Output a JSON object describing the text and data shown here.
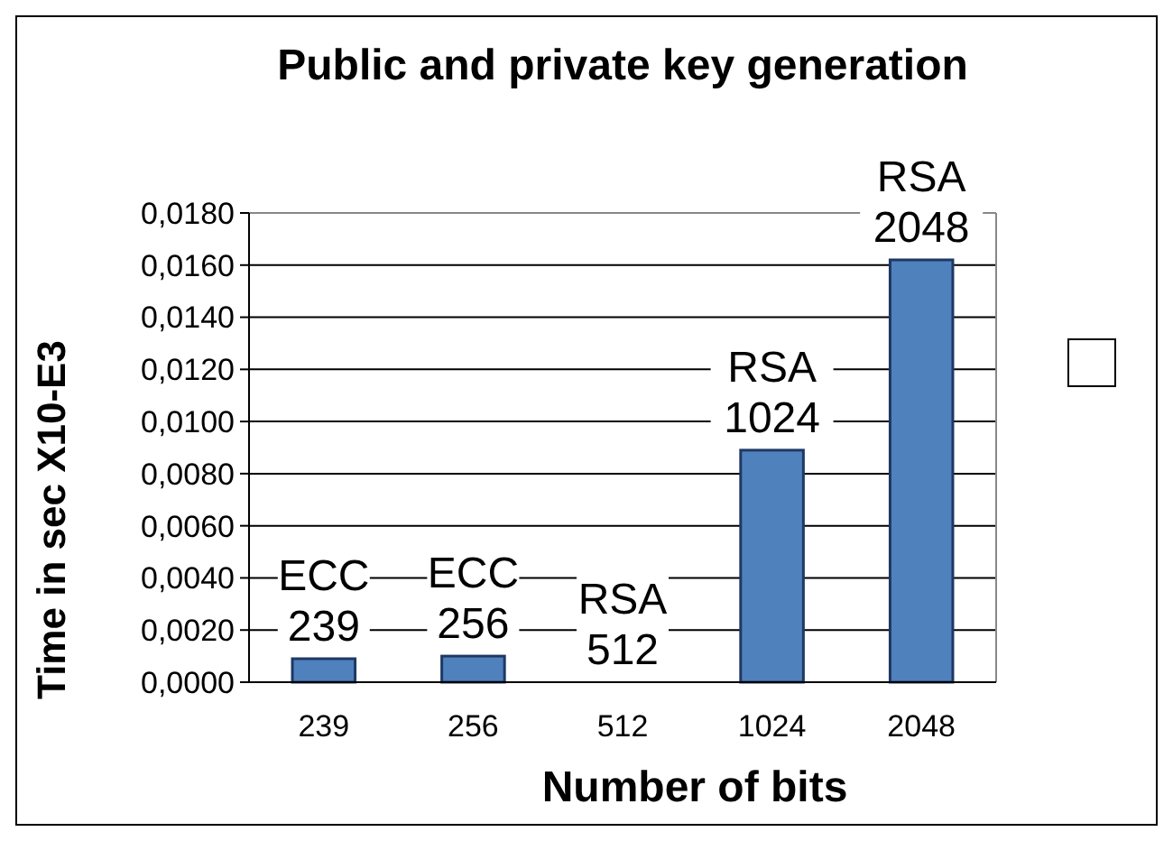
{
  "chart_data": {
    "type": "bar",
    "title": "Public and private key generation",
    "xlabel": "Number of bits",
    "ylabel": "Time in sec X10-E3",
    "categories": [
      "239",
      "256",
      "512",
      "1024",
      "2048"
    ],
    "values": [
      0.0009,
      0.001,
      0,
      0.0089,
      0.0162
    ],
    "color": "#4f81bd",
    "ylim": [
      0,
      0.018
    ],
    "yticks": [
      {
        "value": 0,
        "label": "0,0000"
      },
      {
        "value": 0.002,
        "label": "0,0020"
      },
      {
        "value": 0.004,
        "label": "0,0040"
      },
      {
        "value": 0.006,
        "label": "0,0060"
      },
      {
        "value": 0.008,
        "label": "0,0080"
      },
      {
        "value": 0.01,
        "label": "0,0100"
      },
      {
        "value": 0.012,
        "label": "0,0120"
      },
      {
        "value": 0.014,
        "label": "0,0140"
      },
      {
        "value": 0.016,
        "label": "0,0160"
      },
      {
        "value": 0.018,
        "label": "0,0180"
      }
    ],
    "grid": "y",
    "annotations": [
      {
        "text": "ECC\n239",
        "x": "239",
        "y": 0.0009
      },
      {
        "text": "ECC\n256",
        "x": "256",
        "y": 0.001
      },
      {
        "text": "RSA\n512",
        "x": "512",
        "y": 0
      },
      {
        "text": "RSA\n1024",
        "x": "1024",
        "y": 0.0089
      },
      {
        "text": "RSA\n2048",
        "x": "2048",
        "y": 0.0162
      }
    ]
  }
}
